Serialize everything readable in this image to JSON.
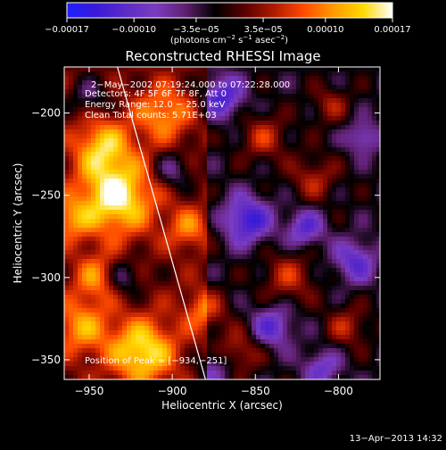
{
  "chart_data": {
    "type": "heatmap",
    "title": "Reconstructed RHESSI Image",
    "xlabel": "Heliocentric X (arcsec)",
    "ylabel": "Heliocentric Y (arcsec)",
    "xlim": [
      -965,
      -775
    ],
    "ylim": [
      -362,
      -172
    ],
    "xticks": [
      -950,
      -900,
      -850,
      -800
    ],
    "yticks": [
      -200,
      -250,
      -300,
      -350
    ],
    "xtick_labels": [
      "−950",
      "−900",
      "−850",
      "−800"
    ],
    "ytick_labels": [
      "−200",
      "−250",
      "−300",
      "−350"
    ],
    "colorbar": {
      "ticks": [
        -0.00017,
        -0.0001,
        -3.5e-05,
        3.5e-05,
        0.0001,
        0.00017
      ],
      "tick_labels": [
        "−0.00017",
        "−0.00010",
        "−3.5e−05",
        "3.5e−05",
        "0.00010",
        "0.00017"
      ],
      "label_prefix": "(photons cm",
      "label_exp1": "−2",
      "label_mid": " s",
      "label_exp2": "−1",
      "label_mid2": " asec",
      "label_exp3": "−2",
      "label_suffix": ")",
      "colors": [
        "#1e20ff",
        "#3a1ad8",
        "#5e2ac8",
        "#7a3cc0",
        "#602070",
        "#000000",
        "#5a0000",
        "#b01a00",
        "#ff4a00",
        "#ff9a00",
        "#ffd800",
        "#ffffff"
      ]
    },
    "annotations": {
      "time_range": "2−May−2002 07:19:24.000 to 07:22:28.000",
      "detectors": "Detectors: 4F 5F 6F 7F 8F, Att 0",
      "energy": "Energy Range: 12.0 − 25.0 keV",
      "clean": "Clean    Total counts: 5.71E+03",
      "peak": "Position of Peak = [−934,−251]"
    },
    "peak_position": [
      -934,
      -251
    ],
    "limb_line": [
      [
        -933,
        -172
      ],
      [
        -880,
        -362
      ]
    ]
  },
  "footer": {
    "timestamp": "13−Apr−2013 14:32"
  }
}
